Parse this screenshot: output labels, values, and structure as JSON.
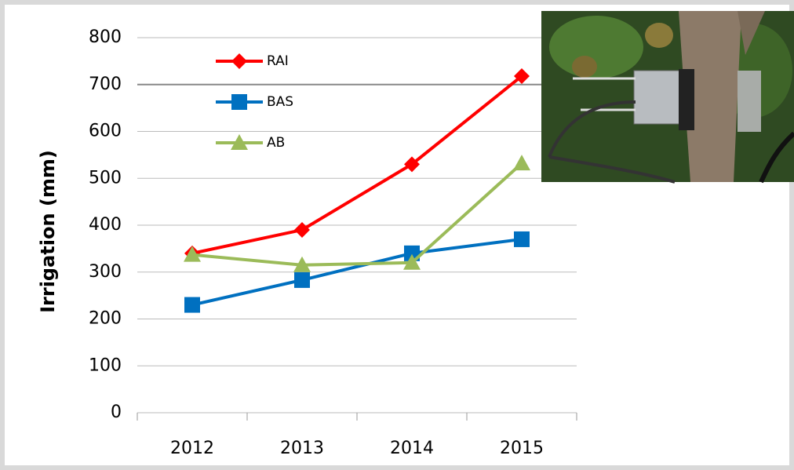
{
  "chart_data": {
    "type": "line",
    "y_label": "Irrigation (mm)",
    "categories": [
      "2012",
      "2013",
      "2014",
      "2015"
    ],
    "series": [
      {
        "name": "RAI",
        "color": "#ff0000",
        "marker": "diamond",
        "values": [
          340,
          390,
          530,
          718
        ]
      },
      {
        "name": "BAS",
        "color": "#0070c0",
        "marker": "square",
        "values": [
          230,
          283,
          340,
          370
        ]
      },
      {
        "name": "AB",
        "color": "#9bbb59",
        "marker": "triangle",
        "values": [
          337,
          315,
          320,
          532
        ]
      }
    ],
    "ylim": [
      0,
      800
    ],
    "yticks": [
      0,
      100,
      200,
      300,
      400,
      500,
      600,
      700,
      800
    ],
    "grid": true
  }
}
